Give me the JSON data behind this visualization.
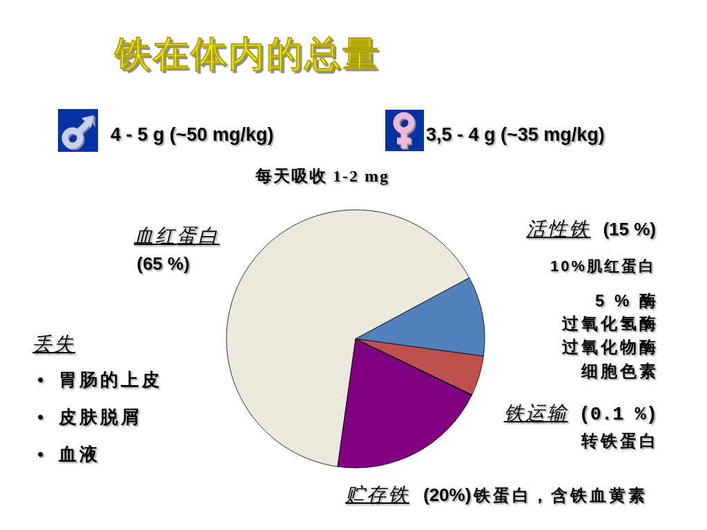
{
  "chart_data": {
    "type": "pie",
    "title": "铁在体内的总量",
    "categories": [
      "血红蛋白",
      null,
      null,
      "铁运输",
      "贮存铁"
    ],
    "values": [
      65,
      10,
      5,
      0.1,
      20
    ],
    "colors": [
      "#ece9df",
      "#4f81bd",
      "#c0504d",
      "#0000ff",
      "#800080"
    ],
    "value_labels": [
      "(65 %)",
      null,
      null,
      "(0.1 %)",
      "(20%)"
    ],
    "annotations": [
      "4 - 5 g (~50 mg/kg)",
      "3,5 - 4 g (~35 mg/kg)",
      "每天吸收 1-2 mg",
      "活性铁",
      "(15 %)",
      "10%肌红蛋白",
      "5 % 酶",
      "过氧化氢酶",
      "过氧化物酶",
      "细胞色素",
      "转铁蛋白",
      "铁蛋白，含铁血黄素",
      "丢失",
      "•",
      "胃肠的上皮",
      "•",
      "皮肤脱屑",
      "•",
      "血液"
    ]
  }
}
